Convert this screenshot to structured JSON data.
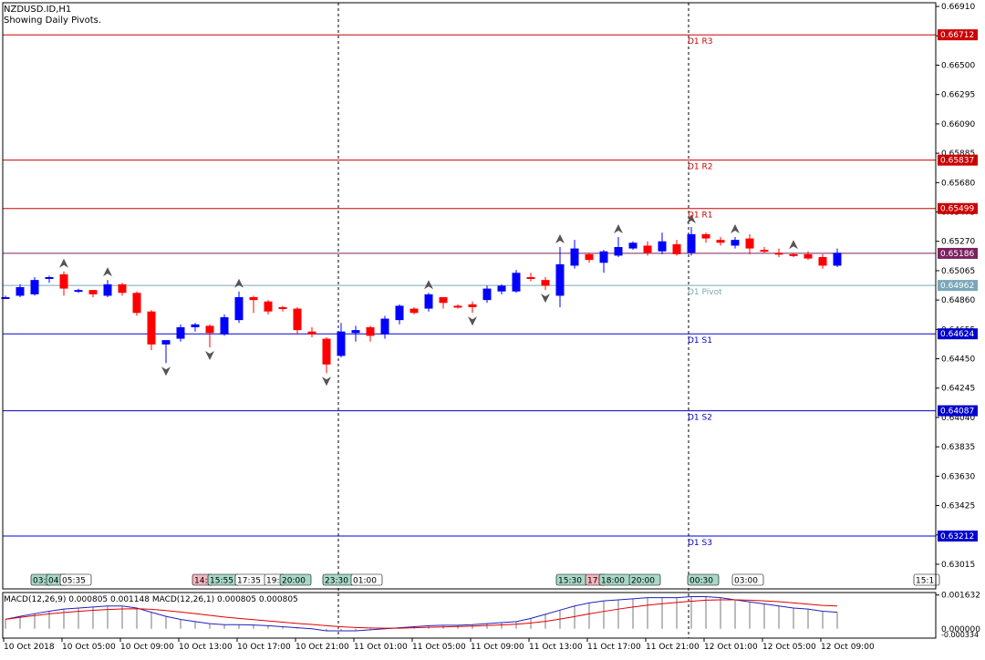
{
  "window": {
    "symbol_title": "NZDUSD.ID,H1",
    "indicator_note": "Showing Daily Pivots."
  },
  "colors": {
    "bull": "#0000ff",
    "bear": "#ff0000",
    "resistance": "#cc0000",
    "support": "#0000cc",
    "pivot": "#7aa7b8",
    "current": "#7b2060",
    "macd_line": "#e00000",
    "signal_line": "#2020c0"
  },
  "price_axis": {
    "ticks": [
      "0.66910",
      "0.66705",
      "0.66500",
      "0.66295",
      "0.66090",
      "0.65885",
      "0.65680",
      "0.65475",
      "0.65270",
      "0.65065",
      "0.64860",
      "0.64655",
      "0.64450",
      "0.64245",
      "0.64040",
      "0.63835",
      "0.63630",
      "0.63425",
      "0.63220",
      "0.63015"
    ],
    "tick_values": [
      0.6691,
      0.66705,
      0.665,
      0.66295,
      0.6609,
      0.65885,
      0.6568,
      0.65475,
      0.6527,
      0.65065,
      0.6486,
      0.64655,
      0.6445,
      0.64245,
      0.6404,
      0.63835,
      0.6363,
      0.63425,
      0.6322,
      0.63015
    ],
    "ylim": [
      0.62843,
      0.66936
    ]
  },
  "pivot_levels": [
    {
      "name": "D1 R3",
      "value": 0.66712,
      "label": "0.66712",
      "kind": "resistance"
    },
    {
      "name": "D1 R2",
      "value": 0.65837,
      "label": "0.65837",
      "kind": "resistance"
    },
    {
      "name": "D1 R1",
      "value": 0.65499,
      "label": "0.65499",
      "kind": "resistance"
    },
    {
      "name": "D1 Pivot",
      "value": 0.64962,
      "label": "0.64962",
      "kind": "pivot"
    },
    {
      "name": "D1 S1",
      "value": 0.64624,
      "label": "0.64624",
      "kind": "support"
    },
    {
      "name": "D1 S2",
      "value": 0.64087,
      "label": "0.64087",
      "kind": "support"
    },
    {
      "name": "D1 S3",
      "value": 0.63212,
      "label": "0.63212",
      "kind": "support"
    }
  ],
  "current_price": {
    "value": 0.65186,
    "label": "0.65186"
  },
  "time_axis": {
    "labels": [
      "10 Oct 2018",
      "10 Oct 05:00",
      "10 Oct 09:00",
      "10 Oct 13:00",
      "10 Oct 17:00",
      "10 Oct 21:00",
      "11 Oct 01:00",
      "11 Oct 05:00",
      "11 Oct 09:00",
      "11 Oct 13:00",
      "11 Oct 17:00",
      "11 Oct 21:00",
      "12 Oct 01:00",
      "12 Oct 05:00",
      "12 Oct 09:00"
    ],
    "label_bars": [
      0,
      4,
      8,
      12,
      16,
      20,
      24,
      28,
      32,
      36,
      40,
      44,
      48,
      52,
      56
    ]
  },
  "day_separators": [
    "10 Oct 23:00",
    "11 Oct 23:00"
  ],
  "session_boxes": [
    {
      "text": "03:",
      "color": "#a8d8c8"
    },
    {
      "text": "04:",
      "color": "#a8d8c8"
    },
    {
      "text": "05:35",
      "color": "#ffffff"
    },
    {
      "text": "14:",
      "color": "#f4b6c0"
    },
    {
      "text": "15:55",
      "color": "#a8d8c8"
    },
    {
      "text": "17:35",
      "color": "#ffffff"
    },
    {
      "text": "19:",
      "color": "#ffffff"
    },
    {
      "text": "20:00",
      "color": "#a8d8c8"
    },
    {
      "text": "23:30",
      "color": "#a8d8c8"
    },
    {
      "text": "01:00",
      "color": "#ffffff"
    },
    {
      "text": "15:30",
      "color": "#a8d8c8"
    },
    {
      "text": "17:",
      "color": "#f4b6c0"
    },
    {
      "text": "18:00",
      "color": "#a8d8c8"
    },
    {
      "text": "20:00",
      "color": "#a8d8c8"
    },
    {
      "text": "00:30",
      "color": "#a8d8c8"
    },
    {
      "text": "03:00",
      "color": "#ffffff"
    },
    {
      "text": "15:1",
      "color": "#ffffff"
    }
  ],
  "macd": {
    "title": "MACD(12,26,9) 0.000805 0.001148 MACD(12,26,1) 0.000805 0.000805",
    "axis_top": "0.001632",
    "axis_bottom": "0.000000",
    "axis_bottom2": "-0.000334",
    "ylim": [
      -0.00045,
      0.00175
    ]
  },
  "chart_data": {
    "type": "candlestick",
    "symbol": "NZDUSD",
    "timeframe": "H1",
    "first_bar": "10 Oct 2018 00:00",
    "ohlc": [
      [
        0.6488,
        0.6489,
        0.6487,
        0.6488
      ],
      [
        0.6489,
        0.6497,
        0.6488,
        0.6495
      ],
      [
        0.649,
        0.6502,
        0.6489,
        0.65
      ],
      [
        0.6501,
        0.6503,
        0.6498,
        0.6502
      ],
      [
        0.6504,
        0.6506,
        0.6489,
        0.6494
      ],
      [
        0.6493,
        0.6494,
        0.6491,
        0.6493
      ],
      [
        0.6493,
        0.6493,
        0.6488,
        0.649
      ],
      [
        0.6489,
        0.65,
        0.6488,
        0.6497
      ],
      [
        0.6497,
        0.6498,
        0.6489,
        0.6491
      ],
      [
        0.6491,
        0.6492,
        0.6475,
        0.6477
      ],
      [
        0.6478,
        0.6479,
        0.6451,
        0.6455
      ],
      [
        0.6455,
        0.6458,
        0.6442,
        0.6458
      ],
      [
        0.6459,
        0.6469,
        0.6457,
        0.6467
      ],
      [
        0.6467,
        0.647,
        0.6464,
        0.6469
      ],
      [
        0.6468,
        0.6469,
        0.6453,
        0.6463
      ],
      [
        0.6462,
        0.6476,
        0.6461,
        0.6474
      ],
      [
        0.6472,
        0.6492,
        0.647,
        0.6488
      ],
      [
        0.6488,
        0.6489,
        0.6477,
        0.6486
      ],
      [
        0.6485,
        0.6486,
        0.6476,
        0.6478
      ],
      [
        0.6481,
        0.6482,
        0.6478,
        0.648
      ],
      [
        0.648,
        0.6481,
        0.6462,
        0.6465
      ],
      [
        0.6464,
        0.6467,
        0.646,
        0.6462
      ],
      [
        0.6459,
        0.646,
        0.6435,
        0.6441
      ],
      [
        0.6447,
        0.647,
        0.6446,
        0.6464
      ],
      [
        0.6463,
        0.6468,
        0.6457,
        0.6465
      ],
      [
        0.6467,
        0.6468,
        0.6457,
        0.6461
      ],
      [
        0.6462,
        0.6475,
        0.6459,
        0.6473
      ],
      [
        0.6472,
        0.6483,
        0.6469,
        0.6482
      ],
      [
        0.648,
        0.6481,
        0.6476,
        0.6477
      ],
      [
        0.648,
        0.6491,
        0.6478,
        0.649
      ],
      [
        0.6488,
        0.6488,
        0.648,
        0.6484
      ],
      [
        0.6482,
        0.6483,
        0.648,
        0.6481
      ],
      [
        0.6483,
        0.6485,
        0.6477,
        0.6481
      ],
      [
        0.6486,
        0.6496,
        0.6484,
        0.6494
      ],
      [
        0.6492,
        0.6497,
        0.649,
        0.6496
      ],
      [
        0.6492,
        0.6507,
        0.6491,
        0.6505
      ],
      [
        0.6502,
        0.6505,
        0.6499,
        0.6501
      ],
      [
        0.65,
        0.6502,
        0.6493,
        0.6496
      ],
      [
        0.6489,
        0.6523,
        0.6481,
        0.6511
      ],
      [
        0.651,
        0.6528,
        0.6508,
        0.6522
      ],
      [
        0.6518,
        0.6519,
        0.6512,
        0.6514
      ],
      [
        0.6512,
        0.6521,
        0.6505,
        0.652
      ],
      [
        0.6517,
        0.653,
        0.6516,
        0.6523
      ],
      [
        0.6522,
        0.6527,
        0.6521,
        0.6526
      ],
      [
        0.6524,
        0.6527,
        0.6517,
        0.6519
      ],
      [
        0.652,
        0.6533,
        0.6518,
        0.6527
      ],
      [
        0.6525,
        0.6528,
        0.6517,
        0.6518
      ],
      [
        0.6519,
        0.6537,
        0.6517,
        0.6532
      ],
      [
        0.6532,
        0.6533,
        0.6526,
        0.6529
      ],
      [
        0.6528,
        0.653,
        0.6524,
        0.6526
      ],
      [
        0.6524,
        0.653,
        0.6522,
        0.6528
      ],
      [
        0.6529,
        0.6532,
        0.6518,
        0.6522
      ],
      [
        0.6521,
        0.6523,
        0.6519,
        0.652
      ],
      [
        0.6519,
        0.6522,
        0.6516,
        0.6518
      ],
      [
        0.6518,
        0.6519,
        0.6516,
        0.6517
      ],
      [
        0.6518,
        0.652,
        0.6514,
        0.6515
      ],
      [
        0.6516,
        0.6518,
        0.6508,
        0.651
      ],
      [
        0.651,
        0.6522,
        0.6509,
        0.6519
      ]
    ],
    "fractals_up": [
      4,
      7,
      16,
      29,
      38,
      42,
      47,
      50,
      54
    ],
    "fractals_down": [
      11,
      14,
      22,
      32,
      37
    ],
    "macd_histogram": [
      0.00046,
      0.0006,
      0.00073,
      0.00085,
      0.00095,
      0.001,
      0.00105,
      0.0011,
      0.0011,
      0.001,
      0.0008,
      0.0006,
      0.00045,
      0.00035,
      0.00025,
      0.0002,
      0.0002,
      0.00018,
      0.00015,
      0.0001,
      5e-05,
      0.0,
      -0.0001,
      -0.0001,
      -0.0001,
      -5e-05,
      0.0,
      5e-05,
      0.0001,
      0.00015,
      0.00017,
      0.00017,
      0.0002,
      0.00025,
      0.0003,
      0.00035,
      0.0005,
      0.0007,
      0.0009,
      0.0011,
      0.00125,
      0.00135,
      0.0014,
      0.00145,
      0.0015,
      0.0015,
      0.0015,
      0.00155,
      0.00155,
      0.0015,
      0.0014,
      0.0013,
      0.0012,
      0.0011,
      0.001,
      0.00095,
      0.00085,
      0.0008
    ],
    "macd_signal": [
      0.00046,
      0.00055,
      0.00064,
      0.00072,
      0.00079,
      0.00084,
      0.00089,
      0.00093,
      0.00096,
      0.00097,
      0.00094,
      0.00088,
      0.00081,
      0.00073,
      0.00065,
      0.00057,
      0.0005,
      0.00044,
      0.00038,
      0.00032,
      0.00026,
      0.00021,
      0.00015,
      0.0001,
      6e-05,
      4e-05,
      3e-05,
      3e-05,
      5e-05,
      7e-05,
      9e-05,
      0.00011,
      0.00013,
      0.00016,
      0.00019,
      0.00022,
      0.00028,
      0.00036,
      0.00047,
      0.00059,
      0.00072,
      0.00084,
      0.00095,
      0.00105,
      0.00114,
      0.00121,
      0.00127,
      0.00133,
      0.00138,
      0.0014,
      0.0014,
      0.00138,
      0.00135,
      0.00131,
      0.00125,
      0.00119,
      0.00113,
      0.0011
    ]
  }
}
